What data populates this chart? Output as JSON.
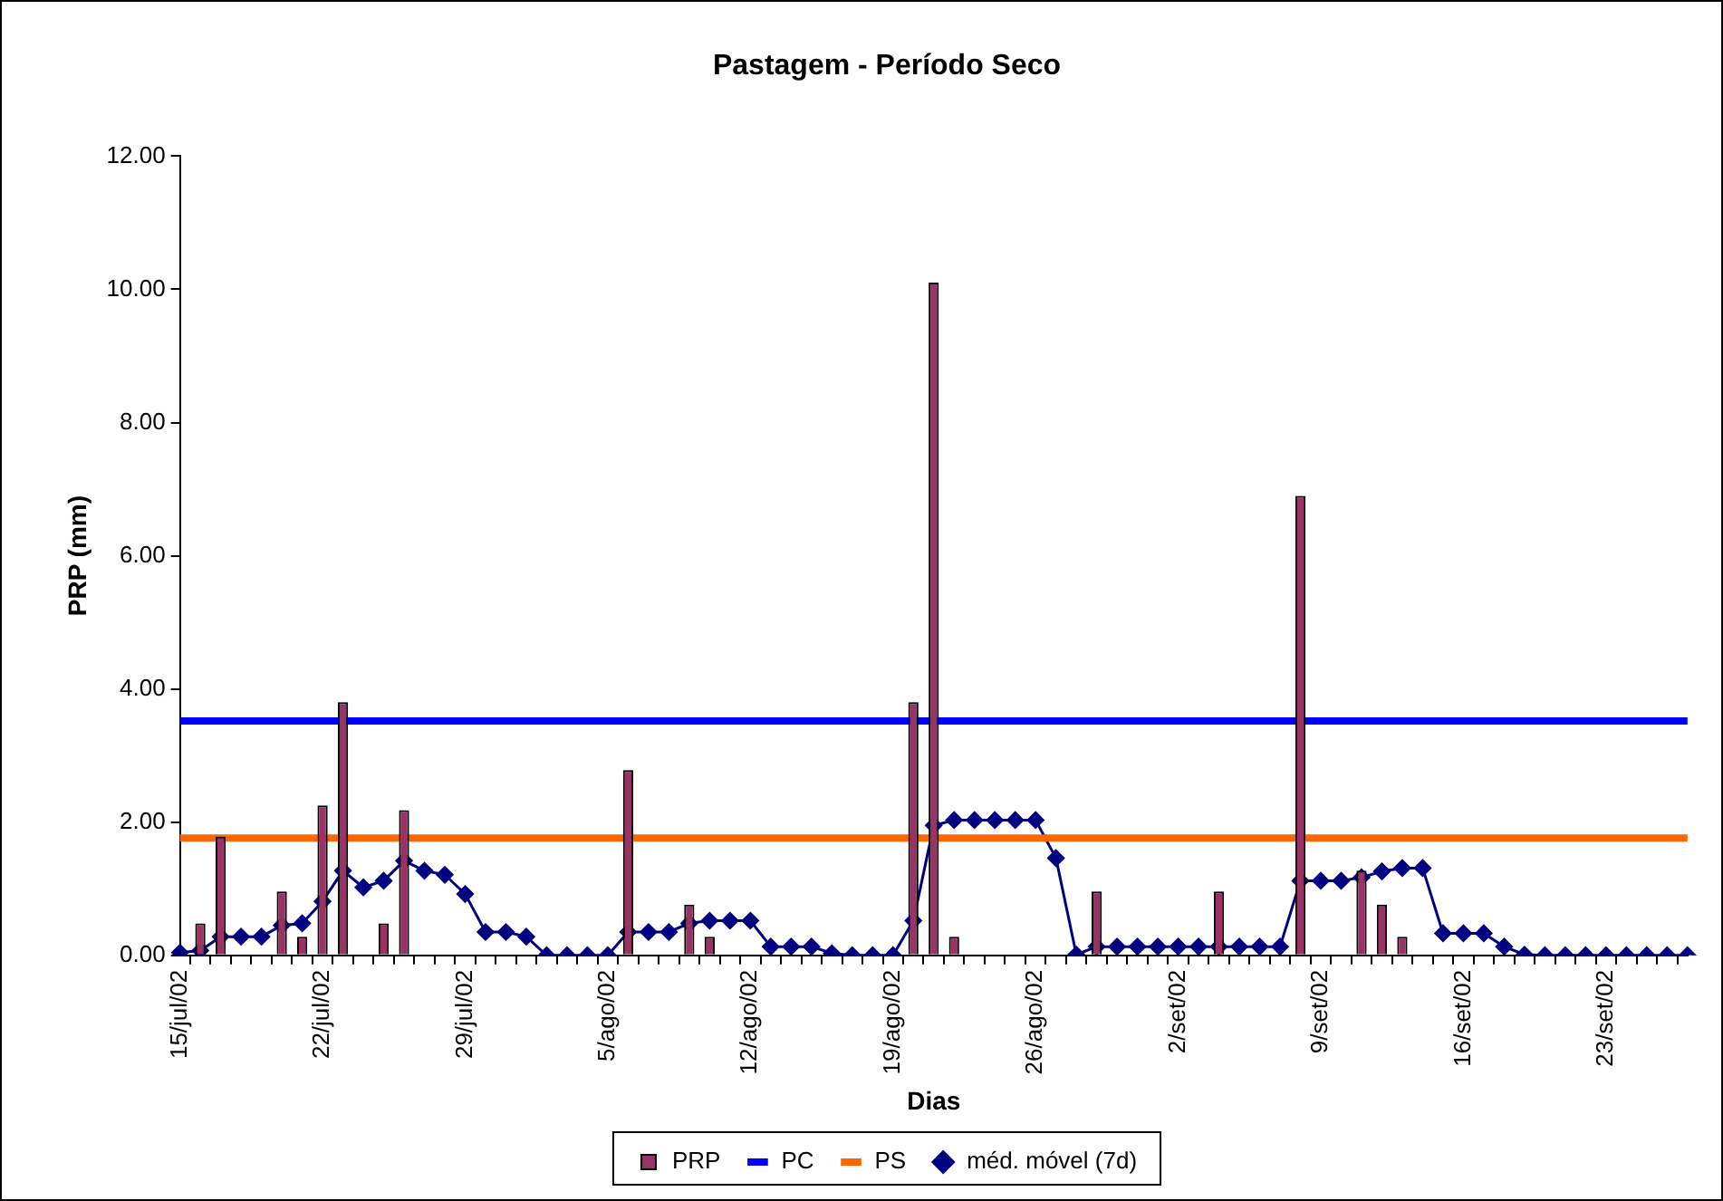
{
  "chart_data": {
    "type": "bar",
    "title": "Pastagem - Período Seco",
    "xlabel": "Dias",
    "ylabel": "PRP (mm)",
    "legend": "bottom",
    "categories": [
      "15/jul/02",
      null,
      null,
      null,
      null,
      null,
      null,
      "22/jul/02",
      null,
      null,
      null,
      null,
      null,
      null,
      "29/jul/02",
      null,
      null,
      null,
      null,
      null,
      null,
      "5/ago/02",
      null,
      null,
      null,
      null,
      null,
      null,
      "12/ago/02",
      null,
      null,
      null,
      null,
      null,
      null,
      "19/ago/02",
      null,
      null,
      null,
      null,
      null,
      null,
      "26/ago/02",
      null,
      null,
      null,
      null,
      null,
      null,
      "2/set/02",
      null,
      null,
      null,
      null,
      null,
      null,
      "9/set/02",
      null,
      null,
      null,
      null,
      null,
      null,
      "16/set/02",
      null,
      null,
      null,
      null,
      null,
      null,
      "23/set/02",
      null,
      null,
      null,
      null
    ],
    "ylim": [
      0,
      12
    ],
    "yticks": [
      {
        "value": 0,
        "label": "0.00"
      },
      {
        "value": 2,
        "label": "2.00"
      },
      {
        "value": 4,
        "label": "4.00"
      },
      {
        "value": 6,
        "label": "6.00"
      },
      {
        "value": 8,
        "label": "8.00"
      },
      {
        "value": 10,
        "label": "10.00"
      },
      {
        "value": 12,
        "label": "12.00"
      }
    ],
    "series": [
      {
        "name": "PRP",
        "color": "#993366",
        "values": [
          0,
          0.48,
          1.78,
          0,
          0,
          0.96,
          0.28,
          2.25,
          3.8,
          0,
          0.48,
          2.18,
          0,
          0,
          0,
          0,
          0,
          0,
          0,
          0,
          0,
          0,
          2.78,
          0,
          0,
          0.76,
          0.28,
          0,
          0,
          0,
          0,
          0,
          0,
          0,
          0,
          0,
          3.8,
          10.1,
          0.28,
          0,
          0,
          0,
          0,
          0,
          0,
          0.96,
          0,
          0,
          0,
          0,
          0,
          0.96,
          0,
          0,
          0,
          6.9,
          0,
          0,
          1.27,
          0.76,
          0.28,
          0,
          0,
          0,
          0,
          0,
          0,
          0,
          0,
          0,
          0,
          0,
          0,
          0,
          0
        ]
      },
      {
        "name": "PC",
        "type": "line",
        "color": "#0000ff",
        "marker": "none",
        "values": [
          3.52,
          3.52,
          3.52,
          3.52,
          3.52,
          3.52,
          3.52,
          3.52,
          3.52,
          3.52,
          3.52,
          3.52,
          3.52,
          3.52,
          3.52,
          3.52,
          3.52,
          3.52,
          3.52,
          3.52,
          3.52,
          3.52,
          3.52,
          3.52,
          3.52,
          3.52,
          3.52,
          3.52,
          3.52,
          3.52,
          3.52,
          3.52,
          3.52,
          3.52,
          3.52,
          3.52,
          3.52,
          3.52,
          3.52,
          3.52,
          3.52,
          3.52,
          3.52,
          3.52,
          3.52,
          3.52,
          3.52,
          3.52,
          3.52,
          3.52,
          3.52,
          3.52,
          3.52,
          3.52,
          3.52,
          3.52,
          3.52,
          3.52,
          3.52,
          3.52,
          3.52,
          3.52,
          3.52,
          3.52,
          3.52,
          3.52,
          3.52,
          3.52,
          3.52,
          3.52,
          3.52,
          3.52,
          3.52,
          3.52,
          3.52
        ]
      },
      {
        "name": "PS",
        "type": "line",
        "color": "#ff6600",
        "marker": "none",
        "values": [
          1.76,
          1.76,
          1.76,
          1.76,
          1.76,
          1.76,
          1.76,
          1.76,
          1.76,
          1.76,
          1.76,
          1.76,
          1.76,
          1.76,
          1.76,
          1.76,
          1.76,
          1.76,
          1.76,
          1.76,
          1.76,
          1.76,
          1.76,
          1.76,
          1.76,
          1.76,
          1.76,
          1.76,
          1.76,
          1.76,
          1.76,
          1.76,
          1.76,
          1.76,
          1.76,
          1.76,
          1.76,
          1.76,
          1.76,
          1.76,
          1.76,
          1.76,
          1.76,
          1.76,
          1.76,
          1.76,
          1.76,
          1.76,
          1.76,
          1.76,
          1.76,
          1.76,
          1.76,
          1.76,
          1.76,
          1.76,
          1.76,
          1.76,
          1.76,
          1.76,
          1.76,
          1.76,
          1.76,
          1.76,
          1.76,
          1.76,
          1.76,
          1.76,
          1.76,
          1.76,
          1.76,
          1.76,
          1.76,
          1.76,
          1.76
        ]
      },
      {
        "name": "méd. móvel (7d)",
        "type": "line",
        "color": "#000080",
        "marker": "diamond",
        "values": [
          0.04,
          0.07,
          0.28,
          0.28,
          0.28,
          0.45,
          0.48,
          0.81,
          1.27,
          1.02,
          1.12,
          1.42,
          1.27,
          1.21,
          0.92,
          0.35,
          0.35,
          0.28,
          0,
          0,
          0,
          0,
          0.35,
          0.35,
          0.35,
          0.48,
          0.52,
          0.52,
          0.52,
          0.13,
          0.13,
          0.13,
          0.03,
          0,
          0,
          0,
          0.52,
          1.95,
          2.03,
          2.03,
          2.03,
          2.03,
          2.03,
          1.46,
          0.01,
          0.13,
          0.13,
          0.13,
          0.13,
          0.13,
          0.13,
          0.13,
          0.13,
          0.13,
          0.13,
          1.12,
          1.12,
          1.12,
          1.17,
          1.26,
          1.31,
          1.31,
          0.33,
          0.33,
          0.33,
          0.13,
          0.01,
          0,
          0,
          0,
          0,
          0,
          0,
          0,
          0
        ]
      }
    ]
  }
}
